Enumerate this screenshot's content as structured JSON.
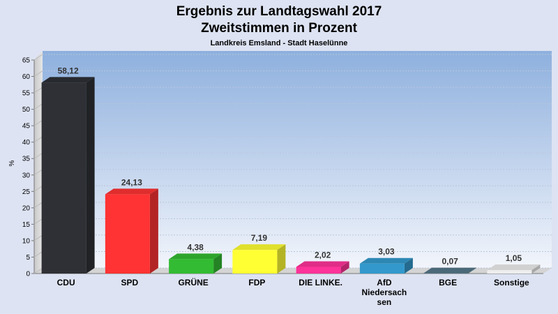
{
  "chart_data": {
    "type": "bar",
    "title": "Ergebnis zur Landtagswahl 2017",
    "subtitle": "Zweitstimmen in Prozent",
    "subtitle2": "Landkreis Emsland - Stadt Haselünne",
    "ylabel": "%",
    "ylim": [
      0,
      65
    ],
    "yticks": [
      "0",
      "5",
      "10",
      "15",
      "20",
      "25",
      "30",
      "35",
      "40",
      "45",
      "50",
      "55",
      "60",
      "65"
    ],
    "grid": true,
    "categories": [
      "CDU",
      "SPD",
      "GRÜNE",
      "FDP",
      "DIE LINKE.",
      "AfD Niedersachsen",
      "BGE",
      "Sonstige"
    ],
    "category_lines": [
      [
        "CDU"
      ],
      [
        "SPD"
      ],
      [
        "GRÜNE"
      ],
      [
        "FDP"
      ],
      [
        "DIE LINKE."
      ],
      [
        "AfD",
        "Niedersach",
        "sen"
      ],
      [
        "BGE"
      ],
      [
        "Sonstige"
      ]
    ],
    "values": [
      58.12,
      24.13,
      4.38,
      7.19,
      2.02,
      3.03,
      0.07,
      1.05
    ],
    "value_labels": [
      "58,12",
      "24,13",
      "4,38",
      "7,19",
      "2,02",
      "3,03",
      "0,07",
      "1,05"
    ],
    "colors": [
      "#2e3035",
      "#ff3333",
      "#33bb33",
      "#ffff33",
      "#ff3399",
      "#3399cc",
      "#557788",
      "#eeeeee"
    ]
  }
}
